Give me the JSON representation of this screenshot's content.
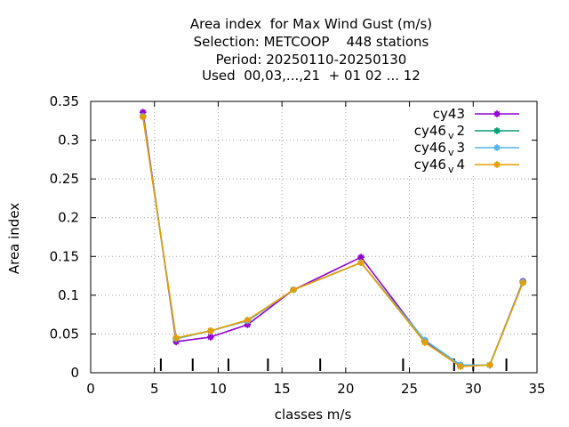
{
  "chart_data": {
    "type": "line",
    "title_lines": [
      "Area index  for Max Wind Gust (m/s)",
      "Selection: METCOOP    448 stations",
      "Period: 20250110-20250130",
      "Used  00,03,...,21  + 01 02 ... 12"
    ],
    "xlabel": "classes m/s",
    "ylabel": "Area index",
    "xlim": [
      0,
      35
    ],
    "ylim": [
      0,
      0.35
    ],
    "x_ticks": [
      0,
      5,
      10,
      15,
      20,
      25,
      30,
      35
    ],
    "y_ticks": [
      0,
      0.05,
      0.1,
      0.15,
      0.2,
      0.25,
      0.3,
      0.35
    ],
    "y_tick_labels": [
      "0",
      "0.05",
      "0.1",
      "0.15",
      "0.2",
      "0.25",
      "0.3",
      "0.35"
    ],
    "grid": true,
    "legend_position": "top-right",
    "class_boundaries": [
      5.5,
      8,
      10.8,
      13.9,
      18,
      24.5,
      28.5,
      30,
      32.6
    ],
    "x": [
      4.1,
      6.7,
      9.4,
      12.3,
      15.9,
      21.2,
      26.2,
      29.0,
      31.3,
      33.9
    ],
    "series": [
      {
        "name": "cy43",
        "name_main": "cy43",
        "name_sub": "",
        "name_tail": "",
        "color": "#9400d3",
        "values": [
          0.336,
          0.04,
          0.046,
          0.062,
          0.107,
          0.149,
          0.041,
          0.009,
          0.01,
          0.118
        ]
      },
      {
        "name": "cy46_v2",
        "name_main": "cy46",
        "name_sub": "v",
        "name_tail": "2",
        "color": "#009e73",
        "values": [
          0.331,
          0.044,
          0.054,
          0.067,
          0.107,
          0.142,
          0.042,
          0.01,
          0.01,
          0.117
        ]
      },
      {
        "name": "cy46_v3",
        "name_main": "cy46",
        "name_sub": "v",
        "name_tail": "3",
        "color": "#56b4e9",
        "values": [
          0.331,
          0.044,
          0.054,
          0.067,
          0.107,
          0.142,
          0.042,
          0.01,
          0.01,
          0.117
        ]
      },
      {
        "name": "cy46_v4",
        "name_main": "cy46",
        "name_sub": "v",
        "name_tail": "4",
        "color": "#e69f00",
        "values": [
          0.33,
          0.045,
          0.054,
          0.068,
          0.107,
          0.142,
          0.039,
          0.008,
          0.01,
          0.116
        ]
      }
    ]
  }
}
